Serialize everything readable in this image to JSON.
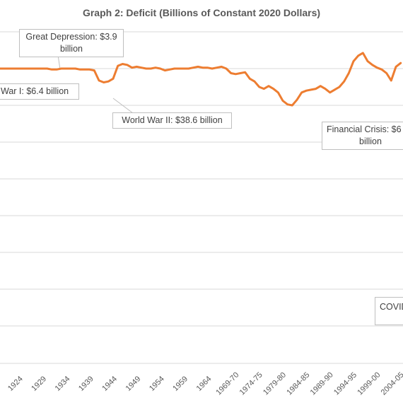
{
  "chart_data": {
    "type": "line",
    "title": "Graph 2: Deficit (Billions of Constant 2020 Dollars)",
    "xlabel": "",
    "ylabel": "",
    "grid": true,
    "color": "#ED7D31",
    "tick_labels": [
      "1924",
      "1929",
      "1934",
      "1939",
      "1944",
      "1949",
      "1954",
      "1959",
      "1964",
      "1969-70",
      "1974-75",
      "1979-80",
      "1984-85",
      "1989-90",
      "1994-95",
      "1999-00",
      "2004-05"
    ],
    "series": [
      {
        "name": "",
        "x": [
          1921,
          1922,
          1923,
          1924,
          1925,
          1926,
          1927,
          1928,
          1929,
          1930,
          1931,
          1932,
          1933,
          1934,
          1935,
          1936,
          1937,
          1938,
          1939,
          1940,
          1941,
          1942,
          1943,
          1944,
          1945,
          1946,
          1947,
          1948,
          1949,
          1950,
          1951,
          1952,
          1953,
          1954,
          1955,
          1956,
          1957,
          1958,
          1959,
          1960,
          1961,
          1962,
          1963,
          1964,
          1965,
          1966,
          1967,
          1968,
          1969,
          1970,
          1971,
          1972,
          1973,
          1974,
          1975,
          1976,
          1977,
          1978,
          1979,
          1980,
          1981,
          1982,
          1983,
          1984,
          1985,
          1986,
          1987,
          1988,
          1989,
          1990,
          1991,
          1992,
          1993,
          1994,
          1995,
          1996,
          1997,
          1998,
          1999,
          2000,
          2001,
          2002,
          2003,
          2004,
          2005,
          2006
        ],
        "y": [
          0,
          0,
          0,
          0,
          0,
          0,
          0,
          0,
          0,
          0,
          0,
          -5,
          -5,
          0,
          0,
          0,
          0,
          -5,
          -5,
          -5,
          -10,
          -65,
          -75,
          -70,
          -55,
          15,
          25,
          20,
          5,
          10,
          5,
          0,
          0,
          5,
          0,
          -10,
          -5,
          0,
          0,
          0,
          0,
          5,
          10,
          5,
          5,
          0,
          5,
          10,
          0,
          -25,
          -30,
          -25,
          -20,
          -55,
          -70,
          -100,
          -110,
          -95,
          -110,
          -130,
          -175,
          -195,
          -200,
          -170,
          -130,
          -120,
          -115,
          -110,
          -95,
          -110,
          -130,
          -115,
          -100,
          -70,
          -25,
          40,
          70,
          85,
          40,
          20,
          5,
          -5,
          -25,
          -65,
          10,
          30
        ]
      }
    ],
    "annotations": [
      {
        "text": "Great Depression: $3.9 billion"
      },
      {
        "text": "War I: $6.4 billion"
      },
      {
        "text": "World War II: $38.6 billion"
      },
      {
        "text": "Financial Crisis: $6"
      },
      {
        "text": "billion"
      },
      {
        "text": "COVID"
      }
    ]
  }
}
